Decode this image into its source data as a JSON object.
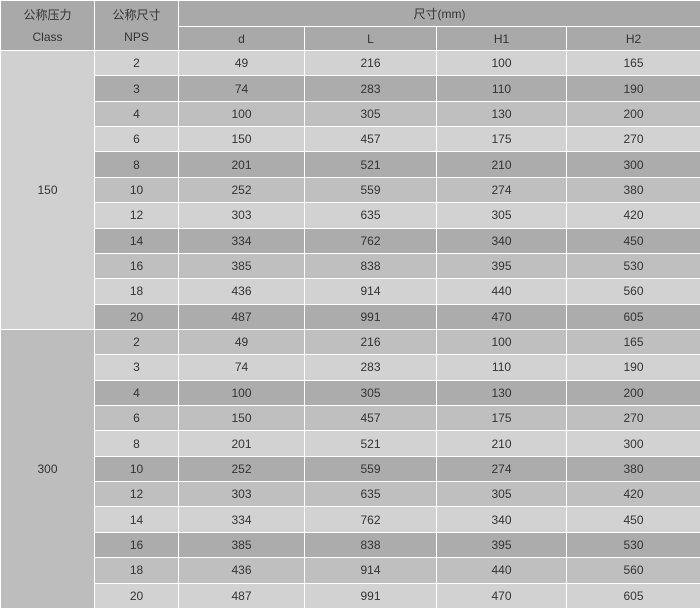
{
  "table": {
    "header": {
      "pressure_label_cn": "公称压力",
      "pressure_label_en": "Class",
      "size_label_cn": "公称尺寸",
      "size_label_en": "NPS",
      "dims_label": "尺寸(mm)",
      "dim_columns": [
        "d",
        "L",
        "H1",
        "H2"
      ]
    },
    "row_keys": [
      "nps",
      "d",
      "L",
      "H1",
      "H2"
    ],
    "sections": [
      {
        "class": "150",
        "rows": [
          {
            "nps": "2",
            "d": "49",
            "L": "216",
            "H1": "100",
            "H2": "165"
          },
          {
            "nps": "3",
            "d": "74",
            "L": "283",
            "H1": "110",
            "H2": "190"
          },
          {
            "nps": "4",
            "d": "100",
            "L": "305",
            "H1": "130",
            "H2": "200"
          },
          {
            "nps": "6",
            "d": "150",
            "L": "457",
            "H1": "175",
            "H2": "270"
          },
          {
            "nps": "8",
            "d": "201",
            "L": "521",
            "H1": "210",
            "H2": "300"
          },
          {
            "nps": "10",
            "d": "252",
            "L": "559",
            "H1": "274",
            "H2": "380"
          },
          {
            "nps": "12",
            "d": "303",
            "L": "635",
            "H1": "305",
            "H2": "420"
          },
          {
            "nps": "14",
            "d": "334",
            "L": "762",
            "H1": "340",
            "H2": "450"
          },
          {
            "nps": "16",
            "d": "385",
            "L": "838",
            "H1": "395",
            "H2": "530"
          },
          {
            "nps": "18",
            "d": "436",
            "L": "914",
            "H1": "440",
            "H2": "560"
          },
          {
            "nps": "20",
            "d": "487",
            "L": "991",
            "H1": "470",
            "H2": "605"
          }
        ]
      },
      {
        "class": "300",
        "rows": [
          {
            "nps": "2",
            "d": "49",
            "L": "216",
            "H1": "100",
            "H2": "165"
          },
          {
            "nps": "3",
            "d": "74",
            "L": "283",
            "H1": "110",
            "H2": "190"
          },
          {
            "nps": "4",
            "d": "100",
            "L": "305",
            "H1": "130",
            "H2": "200"
          },
          {
            "nps": "6",
            "d": "150",
            "L": "457",
            "H1": "175",
            "H2": "270"
          },
          {
            "nps": "8",
            "d": "201",
            "L": "521",
            "H1": "210",
            "H2": "300"
          },
          {
            "nps": "10",
            "d": "252",
            "L": "559",
            "H1": "274",
            "H2": "380"
          },
          {
            "nps": "12",
            "d": "303",
            "L": "635",
            "H1": "305",
            "H2": "420"
          },
          {
            "nps": "14",
            "d": "334",
            "L": "762",
            "H1": "340",
            "H2": "450"
          },
          {
            "nps": "16",
            "d": "385",
            "L": "838",
            "H1": "395",
            "H2": "530"
          },
          {
            "nps": "18",
            "d": "436",
            "L": "914",
            "H1": "440",
            "H2": "560"
          },
          {
            "nps": "20",
            "d": "487",
            "L": "991",
            "H1": "470",
            "H2": "605"
          }
        ]
      }
    ]
  },
  "colors": {
    "header_bg": "#a9a9a9",
    "row_light": "#d2d2d2",
    "row_dark": "#acacac",
    "row_medium": "#bfbfbf",
    "class150_bg": "#d0d0d0",
    "class300_bg": "#bdbdbd",
    "grid_line": "#ffffff",
    "text": "#333333"
  },
  "chart_data": {
    "type": "table",
    "title": "尺寸(mm)",
    "columns": [
      "公称压力 Class",
      "公称尺寸 NPS",
      "d",
      "L",
      "H1",
      "H2"
    ],
    "rows": [
      [
        "150",
        2,
        49,
        216,
        100,
        165
      ],
      [
        "150",
        3,
        74,
        283,
        110,
        190
      ],
      [
        "150",
        4,
        100,
        305,
        130,
        200
      ],
      [
        "150",
        6,
        150,
        457,
        175,
        270
      ],
      [
        "150",
        8,
        201,
        521,
        210,
        300
      ],
      [
        "150",
        10,
        252,
        559,
        274,
        380
      ],
      [
        "150",
        12,
        303,
        635,
        305,
        420
      ],
      [
        "150",
        14,
        334,
        762,
        340,
        450
      ],
      [
        "150",
        16,
        385,
        838,
        395,
        530
      ],
      [
        "150",
        18,
        436,
        914,
        440,
        560
      ],
      [
        "150",
        20,
        487,
        991,
        470,
        605
      ],
      [
        "300",
        2,
        49,
        216,
        100,
        165
      ],
      [
        "300",
        3,
        74,
        283,
        110,
        190
      ],
      [
        "300",
        4,
        100,
        305,
        130,
        200
      ],
      [
        "300",
        6,
        150,
        457,
        175,
        270
      ],
      [
        "300",
        8,
        201,
        521,
        210,
        300
      ],
      [
        "300",
        10,
        252,
        559,
        274,
        380
      ],
      [
        "300",
        12,
        303,
        635,
        305,
        420
      ],
      [
        "300",
        14,
        334,
        762,
        340,
        450
      ],
      [
        "300",
        16,
        385,
        838,
        395,
        530
      ],
      [
        "300",
        18,
        436,
        914,
        440,
        560
      ],
      [
        "300",
        20,
        487,
        991,
        470,
        605
      ]
    ]
  }
}
